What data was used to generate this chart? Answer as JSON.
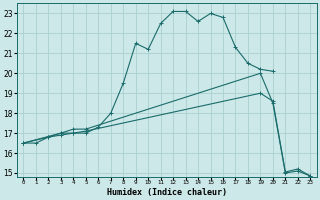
{
  "xlabel": "Humidex (Indice chaleur)",
  "bg_color": "#cce8e8",
  "line_color": "#1a6b6b",
  "grid_color": "#aad0d0",
  "xlim": [
    -0.5,
    23.5
  ],
  "ylim": [
    14.8,
    23.5
  ],
  "xticks": [
    0,
    1,
    2,
    3,
    4,
    5,
    6,
    7,
    8,
    9,
    10,
    11,
    12,
    13,
    14,
    15,
    16,
    17,
    18,
    19,
    20,
    21,
    22,
    23
  ],
  "yticks": [
    15,
    16,
    17,
    18,
    19,
    20,
    21,
    22,
    23
  ],
  "line1_x": [
    0,
    1,
    2,
    3,
    4,
    5,
    6,
    7,
    8,
    9,
    10,
    11,
    12,
    13,
    14,
    15,
    16,
    17,
    18,
    19,
    20
  ],
  "line1_y": [
    16.5,
    16.5,
    16.8,
    16.9,
    17.0,
    17.0,
    17.3,
    18.0,
    19.5,
    21.5,
    21.2,
    22.5,
    23.1,
    23.1,
    22.6,
    23.0,
    22.8,
    21.3,
    20.5,
    20.2,
    20.1
  ],
  "line2_x": [
    0,
    2,
    3,
    4,
    5,
    19,
    20,
    21,
    22,
    23
  ],
  "line2_y": [
    16.5,
    16.8,
    17.0,
    17.2,
    17.2,
    20.0,
    18.5,
    15.0,
    15.1,
    14.85
  ],
  "line3_x": [
    0,
    3,
    4,
    5,
    19,
    20,
    21,
    22,
    23
  ],
  "line3_y": [
    16.5,
    17.0,
    17.0,
    17.1,
    19.0,
    18.6,
    15.05,
    15.2,
    14.85
  ]
}
